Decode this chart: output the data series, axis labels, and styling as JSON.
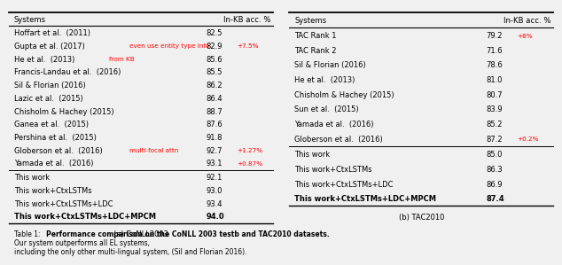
{
  "conll_header": [
    "Systems",
    "In-KB acc. %"
  ],
  "conll_rows_upper": [
    {
      "system": "Hoffart et al.  (2011)",
      "value": "82.5",
      "annotation": "",
      "ann_suffix": ""
    },
    {
      "system": "Gupta et al. (2017)",
      "value": "82.9",
      "annotation": "even use entity type info",
      "ann_suffix": "+7.5%"
    },
    {
      "system": "He et al.  (2013)",
      "value": "85.6",
      "annotation": "from KB",
      "ann_suffix": ""
    },
    {
      "system": "Francis-Landau et al.  (2016)",
      "value": "85.5",
      "annotation": "",
      "ann_suffix": ""
    },
    {
      "system": "Sil & Florian (2016)",
      "value": "86.2",
      "annotation": "",
      "ann_suffix": ""
    },
    {
      "system": "Lazic et al.  (2015)",
      "value": "86.4",
      "annotation": "",
      "ann_suffix": ""
    },
    {
      "system": "Chisholm & Hachey (2015)",
      "value": "88.7",
      "annotation": "",
      "ann_suffix": ""
    },
    {
      "system": "Ganea et al.  (2015)",
      "value": "87.6",
      "annotation": "",
      "ann_suffix": ""
    },
    {
      "system": "Pershina et al.  (2015)",
      "value": "91.8",
      "annotation": "",
      "ann_suffix": ""
    },
    {
      "system": "Globerson et al.  (2016)",
      "value": "92.7",
      "annotation": "multi-focal attn",
      "ann_suffix": "+1.27%"
    },
    {
      "system": "Yamada et al.  (2016)",
      "value": "93.1",
      "annotation": "",
      "ann_suffix": "+0.87%"
    }
  ],
  "conll_rows_lower": [
    {
      "system": "This work",
      "value": "92.1",
      "bold": false
    },
    {
      "system": "This work+CtxLSTMs",
      "value": "93.0",
      "bold": false
    },
    {
      "system": "This work+CtxLSTMs+LDC",
      "value": "93.4",
      "bold": false
    },
    {
      "system": "This work+CtxLSTMs+LDC+MPCM",
      "value": "94.0",
      "bold": true
    }
  ],
  "conll_caption": "(a) CoNLL2003",
  "tac_header": [
    "Systems",
    "In-KB acc. %"
  ],
  "tac_rows_upper": [
    {
      "system": "TAC Rank 1",
      "value": "79.2",
      "ann_suffix": "+8%"
    },
    {
      "system": "TAC Rank 2",
      "value": "71.6",
      "ann_suffix": ""
    },
    {
      "system": "Sil & Florian (2016)",
      "value": "78.6",
      "ann_suffix": ""
    },
    {
      "system": "He et al.  (2013)",
      "value": "81.0",
      "ann_suffix": ""
    },
    {
      "system": "Chisholm & Hachey (2015)",
      "value": "80.7",
      "ann_suffix": ""
    },
    {
      "system": "Sun et al.  (2015)",
      "value": "83.9",
      "ann_suffix": ""
    },
    {
      "system": "Yamada et al.  (2016)",
      "value": "85.2",
      "ann_suffix": ""
    },
    {
      "system": "Globerson et al.  (2016)",
      "value": "87.2",
      "ann_suffix": "+0.2%"
    }
  ],
  "tac_rows_lower": [
    {
      "system": "This work",
      "value": "85.0",
      "bold": false
    },
    {
      "system": "This work+CtxLSTMs",
      "value": "86.3",
      "bold": false
    },
    {
      "system": "This work+CtxLSTMs+LDC",
      "value": "86.9",
      "bold": false
    },
    {
      "system": "This work+CtxLSTMs+LDC+MPCM",
      "value": "87.4",
      "bold": true
    }
  ],
  "tac_caption": "(b) TAC2010",
  "table_caption_normal": "Table 1: ",
  "table_caption_bold": "Performance comparison on the CoNLL 2003 testb and TAC2010 datasets.",
  "table_caption_rest": " Our system outperforms all EL systems,\nincluding the only other multi-lingual system, (Sil and Florian 2016).",
  "bg_color": "#f0f0f0"
}
